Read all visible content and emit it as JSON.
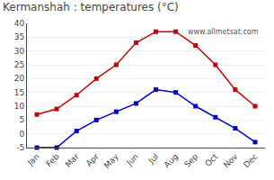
{
  "chart_data": {
    "type": "line",
    "title": "Kermanshah : temperatures (°C)",
    "categories": [
      "Jan",
      "Feb",
      "Mar",
      "Apr",
      "May",
      "Jun",
      "Jul",
      "Aug",
      "Sep",
      "Oct",
      "Nov",
      "Dec"
    ],
    "series": [
      {
        "color": "#cc0000",
        "values": [
          7,
          9,
          14,
          20,
          25,
          33,
          37,
          37,
          32,
          25,
          16,
          10
        ]
      },
      {
        "color": "#0000cc",
        "values": [
          -5,
          -5,
          1,
          5,
          8,
          11,
          16,
          15,
          10,
          6,
          2,
          -3
        ]
      }
    ],
    "ylim": [
      -5,
      40
    ],
    "yticks": [
      -5,
      0,
      5,
      10,
      15,
      20,
      25,
      30,
      35,
      40
    ],
    "grid": true,
    "marker": "square",
    "annotations": [
      "www.allmetsat.com"
    ]
  }
}
